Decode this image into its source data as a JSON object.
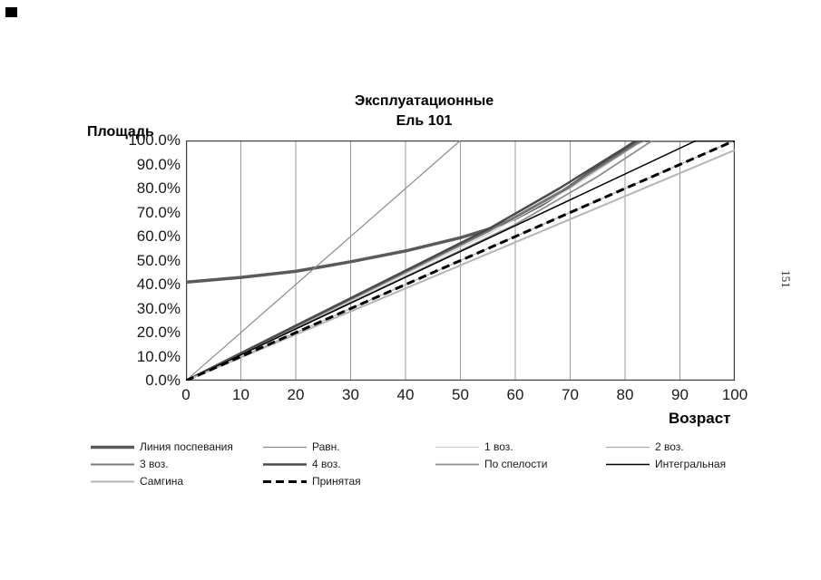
{
  "page": {
    "side_number": "151"
  },
  "chart_data": {
    "type": "line",
    "title": "Эксплуатационные",
    "subtitle": "Ель 101",
    "xlabel": "Возраст",
    "ylabel": "Площадь",
    "xlim": [
      0,
      100
    ],
    "ylim": [
      0,
      100
    ],
    "x_ticks": [
      0,
      10,
      20,
      30,
      40,
      50,
      60,
      70,
      80,
      90,
      100
    ],
    "y_ticks": [
      0,
      10,
      20,
      30,
      40,
      50,
      60,
      70,
      80,
      90,
      100
    ],
    "y_tick_labels": [
      "0.0%",
      "10.0%",
      "20.0%",
      "30.0%",
      "40.0%",
      "50.0%",
      "60.0%",
      "70.0%",
      "80.0%",
      "90.0%",
      "100.0%"
    ],
    "grid": "vertical",
    "grid_color": "#9a9a9a",
    "border_color": "#404040",
    "legend_position": "bottom",
    "series": [
      {
        "name": "Линия поспевания",
        "color": "#5a5a5a",
        "width": 3.5,
        "dash": null,
        "col": 0,
        "row": 0,
        "points": [
          [
            0,
            41
          ],
          [
            10,
            43
          ],
          [
            20,
            45.5
          ],
          [
            25,
            47.5
          ],
          [
            30,
            49.5
          ],
          [
            40,
            54
          ],
          [
            50,
            59.5
          ],
          [
            55,
            63
          ],
          [
            60,
            67.5
          ],
          [
            65,
            73.5
          ],
          [
            70,
            81
          ],
          [
            75,
            89
          ],
          [
            80,
            96.5
          ],
          [
            83,
            100
          ],
          [
            100,
            100
          ]
        ]
      },
      {
        "name": "Равн.",
        "color": "#8c8c8c",
        "width": 1.2,
        "dash": null,
        "col": 1,
        "row": 0,
        "points": [
          [
            0,
            0
          ],
          [
            50,
            100
          ]
        ]
      },
      {
        "name": "1 воз.",
        "color": "#d0d0d0",
        "width": 1.2,
        "dash": null,
        "col": 2,
        "row": 0,
        "points": [
          [
            0,
            0
          ],
          [
            55,
            61
          ],
          [
            70,
            80
          ],
          [
            82,
            98
          ],
          [
            84,
            100
          ],
          [
            100,
            100
          ]
        ]
      },
      {
        "name": "2 воз.",
        "color": "#ababab",
        "width": 1.2,
        "dash": null,
        "col": 3,
        "row": 0,
        "points": [
          [
            0,
            0
          ],
          [
            100,
            100
          ]
        ]
      },
      {
        "name": "3 воз.",
        "color": "#7a7a7a",
        "width": 2,
        "dash": null,
        "col": 0,
        "row": 1,
        "points": [
          [
            0,
            0
          ],
          [
            55,
            62
          ],
          [
            70,
            81
          ],
          [
            81,
            97
          ],
          [
            83,
            100
          ],
          [
            100,
            100
          ]
        ]
      },
      {
        "name": "4 воз.",
        "color": "#4a4a4a",
        "width": 2.5,
        "dash": null,
        "col": 1,
        "row": 1,
        "points": [
          [
            0,
            0
          ],
          [
            55,
            63
          ],
          [
            68,
            80
          ],
          [
            80,
            97
          ],
          [
            82,
            100
          ],
          [
            100,
            100
          ]
        ]
      },
      {
        "name": "По спелости",
        "color": "#8f8f8f",
        "width": 1.8,
        "dash": null,
        "col": 2,
        "row": 1,
        "points": [
          [
            0,
            0
          ],
          [
            60,
            65
          ],
          [
            75,
            85
          ],
          [
            85,
            100
          ],
          [
            100,
            100
          ]
        ]
      },
      {
        "name": "Интегральная",
        "color": "#000000",
        "width": 1.5,
        "dash": null,
        "col": 3,
        "row": 1,
        "points": [
          [
            0,
            0
          ],
          [
            93,
            100
          ],
          [
            100,
            100
          ]
        ]
      },
      {
        "name": "Самгина",
        "color": "#b5b5b5",
        "width": 2,
        "dash": null,
        "col": 0,
        "row": 2,
        "points": [
          [
            0,
            0
          ],
          [
            100,
            96
          ]
        ]
      },
      {
        "name": "Принятая",
        "color": "#000000",
        "width": 3,
        "dash": "9 5",
        "col": 1,
        "row": 2,
        "points": [
          [
            0,
            0
          ],
          [
            100,
            100
          ]
        ]
      }
    ]
  }
}
